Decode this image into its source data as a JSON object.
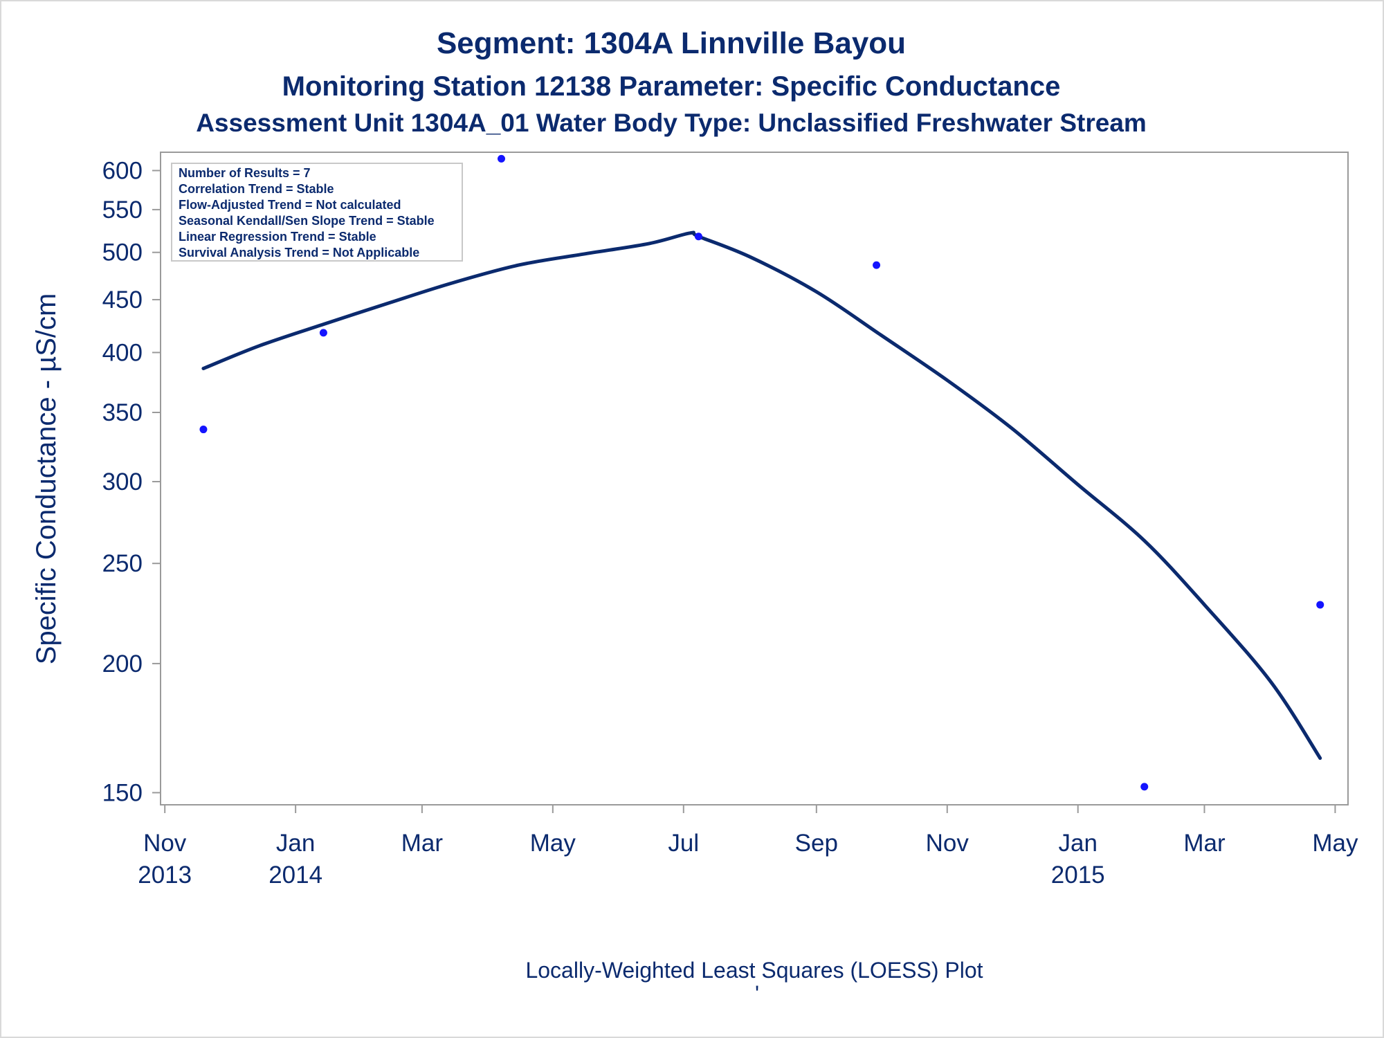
{
  "colors": {
    "text": "#0b2a6e",
    "line": "#0b2a6e",
    "points": "#1414ff",
    "frame": "#9a9a9a"
  },
  "titles": {
    "line1": "Segment: 1304A  Linnville Bayou",
    "line2": "Monitoring Station 12138 Parameter: Specific Conductance",
    "line3": "Assessment Unit 1304A_01   Water Body Type: Unclassified Freshwater Stream"
  },
  "legend_box": {
    "lines": [
      "Number of Results = 7",
      "Correlation Trend = Stable",
      "Flow-Adjusted Trend = Not calculated",
      "Seasonal Kendall/Sen Slope Trend = Stable",
      "Linear Regression Trend = Stable",
      "Survival Analysis Trend = Not Applicable"
    ]
  },
  "footnote": "Locally-Weighted Least Squares (LOESS) Plot",
  "footnote_mark": "'",
  "chart_data": {
    "type": "scatter",
    "xlabel": "",
    "ylabel": "Specific Conductance -  µS/cm",
    "y_scale": "log",
    "ylim": [
      146,
      625
    ],
    "xlim": [
      "2013-10-30",
      "2015-05-07"
    ],
    "grid": false,
    "x_ticks": [
      {
        "date": "2013-11-01",
        "label": "Nov",
        "year": "2013"
      },
      {
        "date": "2014-01-01",
        "label": "Jan",
        "year": "2014"
      },
      {
        "date": "2014-03-01",
        "label": "Mar",
        "year": ""
      },
      {
        "date": "2014-05-01",
        "label": "May",
        "year": ""
      },
      {
        "date": "2014-07-01",
        "label": "Jul",
        "year": ""
      },
      {
        "date": "2014-09-01",
        "label": "Sep",
        "year": ""
      },
      {
        "date": "2014-11-01",
        "label": "Nov",
        "year": ""
      },
      {
        "date": "2015-01-01",
        "label": "Jan",
        "year": "2015"
      },
      {
        "date": "2015-03-01",
        "label": "Mar",
        "year": ""
      },
      {
        "date": "2015-05-01",
        "label": "May",
        "year": ""
      }
    ],
    "y_ticks": [
      150,
      200,
      250,
      300,
      350,
      400,
      450,
      500,
      550,
      600
    ],
    "series": [
      {
        "kind": "points",
        "x": [
          "2013-11-19",
          "2014-01-14",
          "2014-04-07",
          "2014-07-08",
          "2014-09-29",
          "2015-02-01",
          "2015-04-24"
        ],
        "y": [
          337,
          418,
          616,
          518,
          486,
          152,
          228
        ]
      },
      {
        "kind": "loess_line",
        "x": [
          "2013-11-19",
          "2013-12-15",
          "2014-01-14",
          "2014-02-14",
          "2014-03-15",
          "2014-04-15",
          "2014-05-15",
          "2014-06-15",
          "2014-07-04",
          "2014-07-08",
          "2014-08-01",
          "2014-09-01",
          "2014-10-01",
          "2014-11-01",
          "2014-12-01",
          "2015-01-01",
          "2015-02-01",
          "2015-03-01",
          "2015-04-01",
          "2015-04-24"
        ],
        "y": [
          386,
          406,
          426,
          447,
          467,
          486,
          498,
          510,
          522,
          518,
          495,
          458,
          416,
          376,
          338,
          298,
          263,
          228,
          192,
          162
        ]
      }
    ]
  }
}
